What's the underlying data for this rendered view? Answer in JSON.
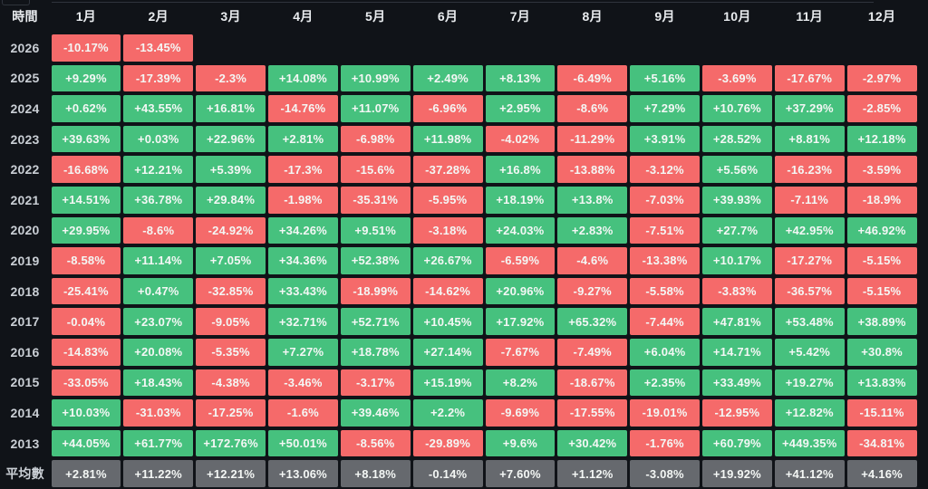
{
  "colors": {
    "background": "#101318",
    "positive": "#46c17e",
    "negative": "#f56a6a",
    "average": "#66696e",
    "header_text": "#e9ecef",
    "label_text": "#c9ced4",
    "cell_text": "#f4f7f5",
    "crop_line": "#2f343c"
  },
  "table": {
    "corner_label": "時間",
    "month_headers": [
      "1月",
      "2月",
      "3月",
      "4月",
      "5月",
      "6月",
      "7月",
      "8月",
      "9月",
      "10月",
      "11月",
      "12月"
    ],
    "rows": [
      {
        "label": "2026",
        "type": "year",
        "cells": [
          "-10.17%",
          "-13.45%",
          "",
          "",
          "",
          "",
          "",
          "",
          "",
          "",
          "",
          ""
        ]
      },
      {
        "label": "2025",
        "type": "year",
        "cells": [
          "+9.29%",
          "-17.39%",
          "-2.3%",
          "+14.08%",
          "+10.99%",
          "+2.49%",
          "+8.13%",
          "-6.49%",
          "+5.16%",
          "-3.69%",
          "-17.67%",
          "-2.97%"
        ]
      },
      {
        "label": "2024",
        "type": "year",
        "cells": [
          "+0.62%",
          "+43.55%",
          "+16.81%",
          "-14.76%",
          "+11.07%",
          "-6.96%",
          "+2.95%",
          "-8.6%",
          "+7.29%",
          "+10.76%",
          "+37.29%",
          "-2.85%"
        ]
      },
      {
        "label": "2023",
        "type": "year",
        "cells": [
          "+39.63%",
          "+0.03%",
          "+22.96%",
          "+2.81%",
          "-6.98%",
          "+11.98%",
          "-4.02%",
          "-11.29%",
          "+3.91%",
          "+28.52%",
          "+8.81%",
          "+12.18%"
        ]
      },
      {
        "label": "2022",
        "type": "year",
        "cells": [
          "-16.68%",
          "+12.21%",
          "+5.39%",
          "-17.3%",
          "-15.6%",
          "-37.28%",
          "+16.8%",
          "-13.88%",
          "-3.12%",
          "+5.56%",
          "-16.23%",
          "-3.59%"
        ]
      },
      {
        "label": "2021",
        "type": "year",
        "cells": [
          "+14.51%",
          "+36.78%",
          "+29.84%",
          "-1.98%",
          "-35.31%",
          "-5.95%",
          "+18.19%",
          "+13.8%",
          "-7.03%",
          "+39.93%",
          "-7.11%",
          "-18.9%"
        ]
      },
      {
        "label": "2020",
        "type": "year",
        "cells": [
          "+29.95%",
          "-8.6%",
          "-24.92%",
          "+34.26%",
          "+9.51%",
          "-3.18%",
          "+24.03%",
          "+2.83%",
          "-7.51%",
          "+27.7%",
          "+42.95%",
          "+46.92%"
        ]
      },
      {
        "label": "2019",
        "type": "year",
        "cells": [
          "-8.58%",
          "+11.14%",
          "+7.05%",
          "+34.36%",
          "+52.38%",
          "+26.67%",
          "-6.59%",
          "-4.6%",
          "-13.38%",
          "+10.17%",
          "-17.27%",
          "-5.15%"
        ]
      },
      {
        "label": "2018",
        "type": "year",
        "cells": [
          "-25.41%",
          "+0.47%",
          "-32.85%",
          "+33.43%",
          "-18.99%",
          "-14.62%",
          "+20.96%",
          "-9.27%",
          "-5.58%",
          "-3.83%",
          "-36.57%",
          "-5.15%"
        ]
      },
      {
        "label": "2017",
        "type": "year",
        "cells": [
          "-0.04%",
          "+23.07%",
          "-9.05%",
          "+32.71%",
          "+52.71%",
          "+10.45%",
          "+17.92%",
          "+65.32%",
          "-7.44%",
          "+47.81%",
          "+53.48%",
          "+38.89%"
        ]
      },
      {
        "label": "2016",
        "type": "year",
        "cells": [
          "-14.83%",
          "+20.08%",
          "-5.35%",
          "+7.27%",
          "+18.78%",
          "+27.14%",
          "-7.67%",
          "-7.49%",
          "+6.04%",
          "+14.71%",
          "+5.42%",
          "+30.8%"
        ]
      },
      {
        "label": "2015",
        "type": "year",
        "cells": [
          "-33.05%",
          "+18.43%",
          "-4.38%",
          "-3.46%",
          "-3.17%",
          "+15.19%",
          "+8.2%",
          "-18.67%",
          "+2.35%",
          "+33.49%",
          "+19.27%",
          "+13.83%"
        ]
      },
      {
        "label": "2014",
        "type": "year",
        "cells": [
          "+10.03%",
          "-31.03%",
          "-17.25%",
          "-1.6%",
          "+39.46%",
          "+2.2%",
          "-9.69%",
          "-17.55%",
          "-19.01%",
          "-12.95%",
          "+12.82%",
          "-15.11%"
        ]
      },
      {
        "label": "2013",
        "type": "year",
        "cells": [
          "+44.05%",
          "+61.77%",
          "+172.76%",
          "+50.01%",
          "-8.56%",
          "-29.89%",
          "+9.6%",
          "+30.42%",
          "-1.76%",
          "+60.79%",
          "+449.35%",
          "-34.81%"
        ]
      },
      {
        "label": "平均數",
        "type": "average",
        "cells": [
          "+2.81%",
          "+11.22%",
          "+12.21%",
          "+13.06%",
          "+8.18%",
          "-0.14%",
          "+7.60%",
          "+1.12%",
          "-3.08%",
          "+19.92%",
          "+41.12%",
          "+4.16%"
        ]
      }
    ]
  },
  "chart_data": {
    "type": "heatmap",
    "title": "",
    "xlabel": "時間",
    "unit": "%",
    "x_categories": [
      "1月",
      "2月",
      "3月",
      "4月",
      "5月",
      "6月",
      "7月",
      "8月",
      "9月",
      "10月",
      "11月",
      "12月"
    ],
    "y_categories": [
      "2026",
      "2025",
      "2024",
      "2023",
      "2022",
      "2021",
      "2020",
      "2019",
      "2018",
      "2017",
      "2016",
      "2015",
      "2014",
      "2013",
      "平均數"
    ],
    "color_rule": "green if value > 0, red if value < 0, gray for average row",
    "values": [
      [
        -10.17,
        -13.45,
        null,
        null,
        null,
        null,
        null,
        null,
        null,
        null,
        null,
        null
      ],
      [
        9.29,
        -17.39,
        -2.3,
        14.08,
        10.99,
        2.49,
        8.13,
        -6.49,
        5.16,
        -3.69,
        -17.67,
        -2.97
      ],
      [
        0.62,
        43.55,
        16.81,
        -14.76,
        11.07,
        -6.96,
        2.95,
        -8.6,
        7.29,
        10.76,
        37.29,
        -2.85
      ],
      [
        39.63,
        0.03,
        22.96,
        2.81,
        -6.98,
        11.98,
        -4.02,
        -11.29,
        3.91,
        28.52,
        8.81,
        12.18
      ],
      [
        -16.68,
        12.21,
        5.39,
        -17.3,
        -15.6,
        -37.28,
        16.8,
        -13.88,
        -3.12,
        5.56,
        -16.23,
        -3.59
      ],
      [
        14.51,
        36.78,
        29.84,
        -1.98,
        -35.31,
        -5.95,
        18.19,
        13.8,
        -7.03,
        39.93,
        -7.11,
        -18.9
      ],
      [
        29.95,
        -8.6,
        -24.92,
        34.26,
        9.51,
        -3.18,
        24.03,
        2.83,
        -7.51,
        27.7,
        42.95,
        46.92
      ],
      [
        -8.58,
        11.14,
        7.05,
        34.36,
        52.38,
        26.67,
        -6.59,
        -4.6,
        -13.38,
        10.17,
        -17.27,
        -5.15
      ],
      [
        -25.41,
        0.47,
        -32.85,
        33.43,
        -18.99,
        -14.62,
        20.96,
        -9.27,
        -5.58,
        -3.83,
        -36.57,
        -5.15
      ],
      [
        -0.04,
        23.07,
        -9.05,
        32.71,
        52.71,
        10.45,
        17.92,
        65.32,
        -7.44,
        47.81,
        53.48,
        38.89
      ],
      [
        -14.83,
        20.08,
        -5.35,
        7.27,
        18.78,
        27.14,
        -7.67,
        -7.49,
        6.04,
        14.71,
        5.42,
        30.8
      ],
      [
        -33.05,
        18.43,
        -4.38,
        -3.46,
        -3.17,
        15.19,
        8.2,
        -18.67,
        2.35,
        33.49,
        19.27,
        13.83
      ],
      [
        10.03,
        -31.03,
        -17.25,
        -1.6,
        39.46,
        2.2,
        -9.69,
        -17.55,
        -19.01,
        -12.95,
        12.82,
        -15.11
      ],
      [
        44.05,
        61.77,
        172.76,
        50.01,
        -8.56,
        -29.89,
        9.6,
        30.42,
        -1.76,
        60.79,
        449.35,
        -34.81
      ],
      [
        2.81,
        11.22,
        12.21,
        13.06,
        8.18,
        -0.14,
        7.6,
        1.12,
        -3.08,
        19.92,
        41.12,
        4.16
      ]
    ]
  }
}
